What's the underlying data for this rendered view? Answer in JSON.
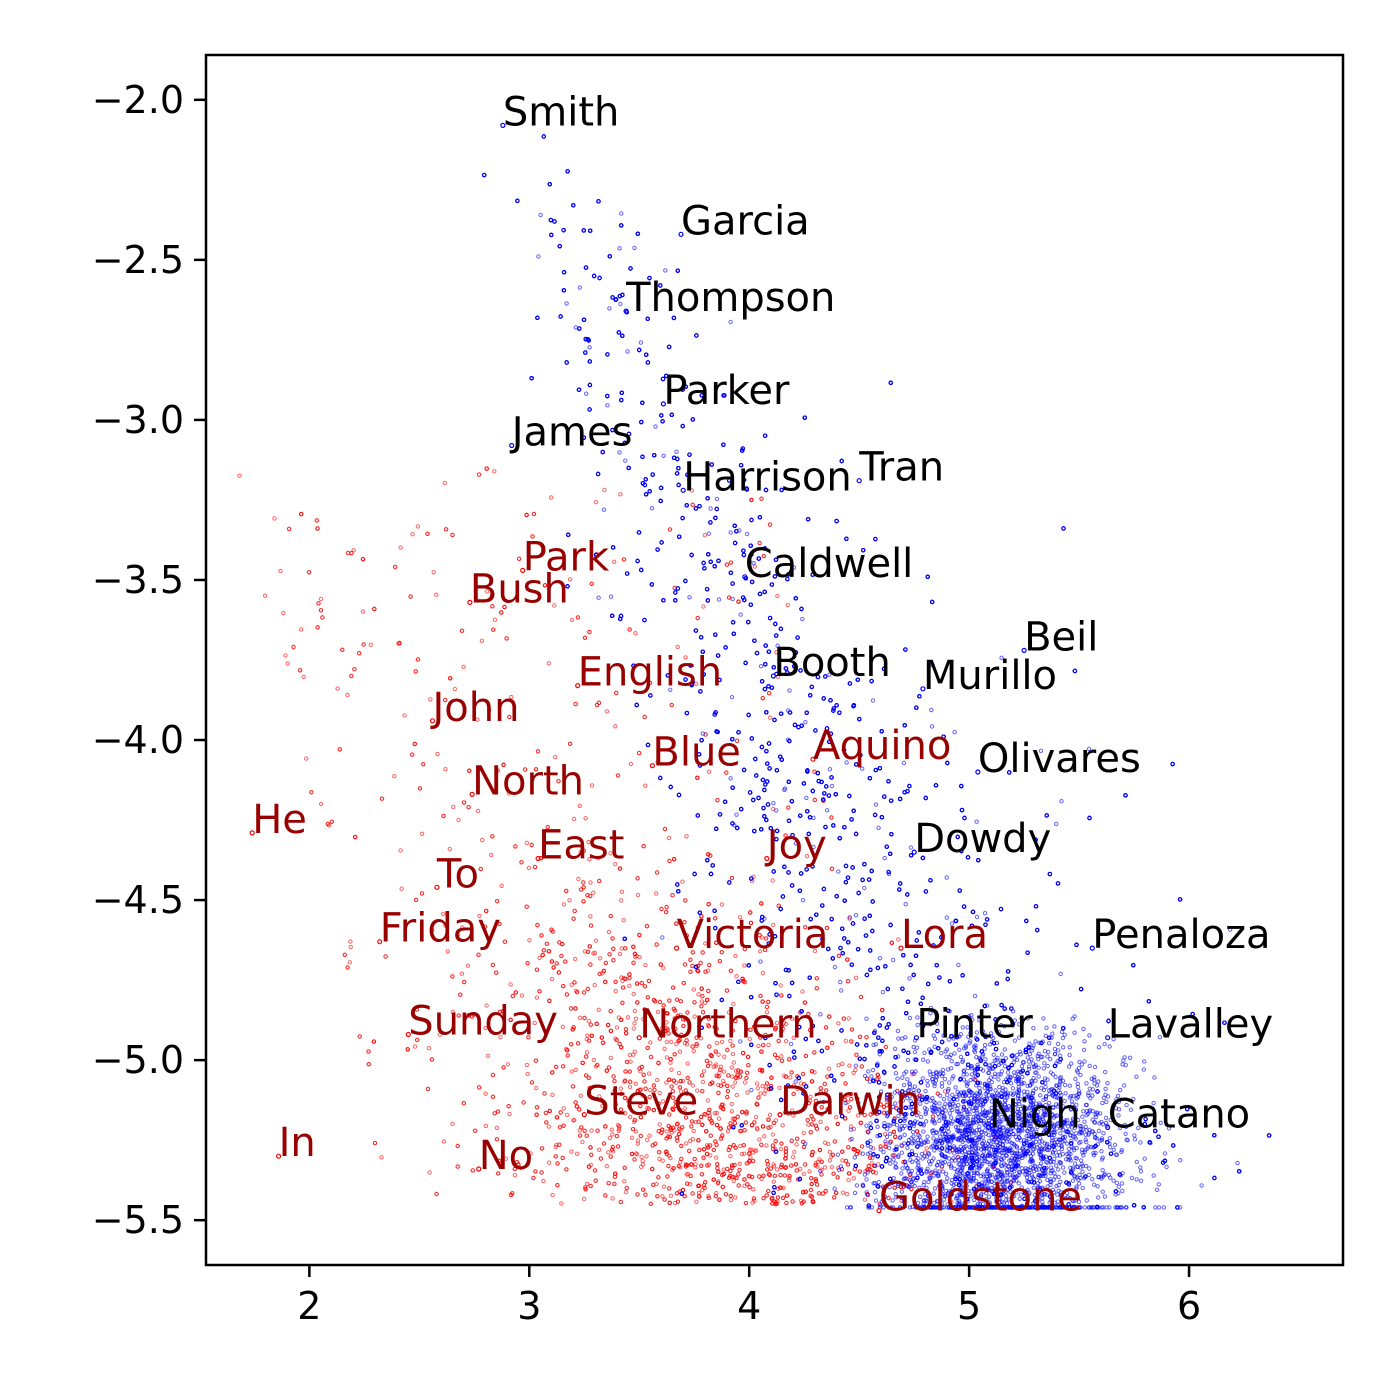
{
  "chart_data": {
    "type": "scatter",
    "title": "",
    "xlabel": "",
    "ylabel": "",
    "xlim": [
      1.53,
      6.7
    ],
    "ylim": [
      -5.64,
      -1.86
    ],
    "grid": false,
    "xticks": [
      {
        "value": 2,
        "label": "2"
      },
      {
        "value": 3,
        "label": "3"
      },
      {
        "value": 4,
        "label": "4"
      },
      {
        "value": 5,
        "label": "5"
      },
      {
        "value": 6,
        "label": "6"
      }
    ],
    "yticks": [
      {
        "value": -2.0,
        "label": "−2.0"
      },
      {
        "value": -2.5,
        "label": "−2.5"
      },
      {
        "value": -3.0,
        "label": "−3.0"
      },
      {
        "value": -3.5,
        "label": "−3.5"
      },
      {
        "value": -4.0,
        "label": "−4.0"
      },
      {
        "value": -4.5,
        "label": "−4.5"
      },
      {
        "value": -5.0,
        "label": "−5.0"
      },
      {
        "value": -5.5,
        "label": "−5.5"
      }
    ],
    "series": [
      {
        "color": "#0000ff",
        "label_color": "#000000",
        "labeled_points": [
          {
            "label": "Smith",
            "x": 2.88,
            "y": -2.08
          },
          {
            "label": "Garcia",
            "x": 3.69,
            "y": -2.42
          },
          {
            "label": "Thompson",
            "x": 3.44,
            "y": -2.66
          },
          {
            "label": "Parker",
            "x": 3.61,
            "y": -2.95
          },
          {
            "label": "James",
            "x": 2.92,
            "y": -3.08
          },
          {
            "label": "Harrison",
            "x": 3.7,
            "y": -3.22
          },
          {
            "label": "Tran",
            "x": 4.5,
            "y": -3.19
          },
          {
            "label": "Caldwell",
            "x": 3.98,
            "y": -3.49
          },
          {
            "label": "Beil",
            "x": 5.25,
            "y": -3.72
          },
          {
            "label": "Booth",
            "x": 4.11,
            "y": -3.8
          },
          {
            "label": "Murillo",
            "x": 4.79,
            "y": -3.84
          },
          {
            "label": "Olivares",
            "x": 5.04,
            "y": -4.1
          },
          {
            "label": "Dowdy",
            "x": 4.75,
            "y": -4.35
          },
          {
            "label": "Penaloza",
            "x": 5.56,
            "y": -4.65
          },
          {
            "label": "Pinter",
            "x": 4.76,
            "y": -4.93
          },
          {
            "label": "Lavalley",
            "x": 5.63,
            "y": -4.93
          },
          {
            "label": "Nigh",
            "x": 5.09,
            "y": -5.21
          },
          {
            "label": "Catano",
            "x": 5.63,
            "y": -5.21
          }
        ]
      },
      {
        "color": "#ff0000",
        "label_color": "#990000",
        "labeled_points": [
          {
            "label": "Park",
            "x": 2.97,
            "y": -3.47
          },
          {
            "label": "Bush",
            "x": 2.73,
            "y": -3.57
          },
          {
            "label": "English",
            "x": 3.22,
            "y": -3.83
          },
          {
            "label": "John",
            "x": 2.56,
            "y": -3.94
          },
          {
            "label": "Blue",
            "x": 3.56,
            "y": -4.08
          },
          {
            "label": "Aquino",
            "x": 4.29,
            "y": -4.06
          },
          {
            "label": "North",
            "x": 2.74,
            "y": -4.17
          },
          {
            "label": "He",
            "x": 1.74,
            "y": -4.29
          },
          {
            "label": "East",
            "x": 3.04,
            "y": -4.37
          },
          {
            "label": "Joy",
            "x": 4.08,
            "y": -4.37
          },
          {
            "label": "To",
            "x": 2.58,
            "y": -4.46
          },
          {
            "label": "Friday",
            "x": 2.32,
            "y": -4.63
          },
          {
            "label": "Victoria",
            "x": 3.67,
            "y": -4.65
          },
          {
            "label": "Lora",
            "x": 4.69,
            "y": -4.65
          },
          {
            "label": "Sunday",
            "x": 2.45,
            "y": -4.92
          },
          {
            "label": "Northern",
            "x": 3.5,
            "y": -4.93
          },
          {
            "label": "Steve",
            "x": 3.25,
            "y": -5.17
          },
          {
            "label": "Darwin",
            "x": 4.14,
            "y": -5.17
          },
          {
            "label": "In",
            "x": 1.86,
            "y": -5.3
          },
          {
            "label": "No",
            "x": 2.77,
            "y": -5.34
          },
          {
            "label": "Goldstone",
            "x": 4.59,
            "y": -5.47
          }
        ]
      }
    ]
  }
}
